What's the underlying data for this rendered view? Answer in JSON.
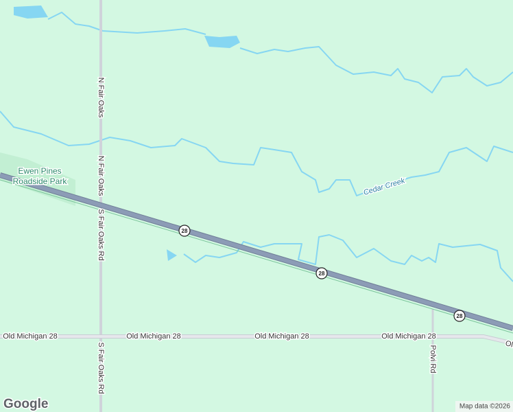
{
  "labels": {
    "park": [
      "Ewen Pines",
      "Roadside Park"
    ],
    "creek": "Cedar Creek",
    "roads": [
      "N Fair Oaks",
      "N Fair Oaks",
      "S Fair Oaks Rd",
      "S Fair Oaks Rd",
      "Old Michigan 28",
      "Old Michigan 28",
      "Old Michigan 28",
      "Old Michigan 28",
      "Old",
      "Polvi Rd"
    ],
    "shields": [
      "28",
      "28",
      "28"
    ]
  },
  "footer": {
    "logo": "Google",
    "attribution": "Map data ©2026"
  }
}
